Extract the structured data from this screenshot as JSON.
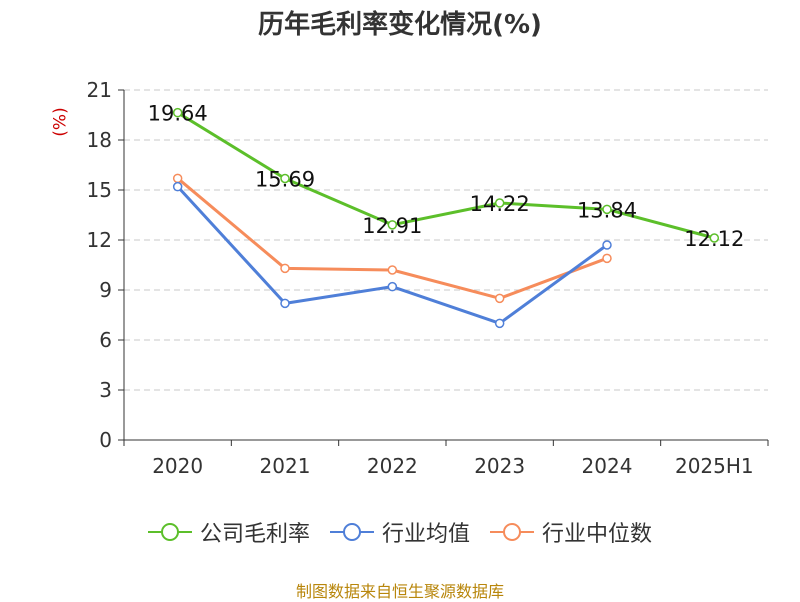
{
  "title": "历年毛利率变化情况(%)",
  "source": "制图数据来自恒生聚源数据库",
  "chart_data": {
    "type": "line",
    "title": "历年毛利率变化情况(%)",
    "ylabel": "(%)",
    "xlabel": "",
    "categories": [
      "2020",
      "2021",
      "2022",
      "2023",
      "2024",
      "2025H1"
    ],
    "ylim": [
      0,
      21
    ],
    "yticks": [
      0,
      3,
      6,
      9,
      12,
      15,
      18,
      21
    ],
    "grid": "horizontal-dashed",
    "legend_position": "bottom",
    "series": [
      {
        "name": "公司毛利率",
        "color": "#5cbf2a",
        "values": [
          19.64,
          15.69,
          12.91,
          14.22,
          13.84,
          12.12
        ],
        "labels": [
          "19.64",
          "15.69",
          "12.91",
          "14.22",
          "13.84",
          "12.12"
        ]
      },
      {
        "name": "行业均值",
        "color": "#4f7fd8",
        "values": [
          15.2,
          8.2,
          9.2,
          7.0,
          11.7,
          null
        ]
      },
      {
        "name": "行业中位数",
        "color": "#f68c5b",
        "values": [
          15.7,
          10.3,
          10.2,
          8.5,
          10.9,
          null
        ]
      }
    ]
  }
}
